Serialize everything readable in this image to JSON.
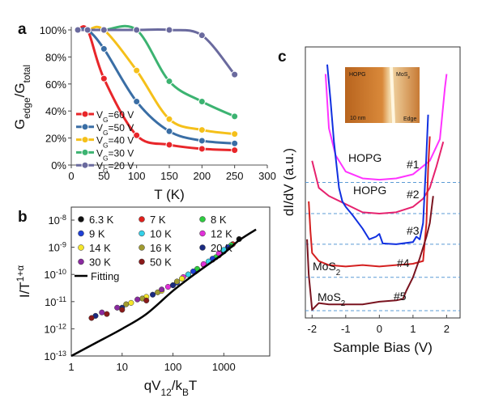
{
  "chart_data": [
    {
      "type": "line",
      "panel_label": "a",
      "x_label": "T (K)",
      "y_label": "G_{edge}/G_{total}",
      "xlim": [
        0,
        300
      ],
      "ylim": [
        0,
        100
      ],
      "xticks": [
        0,
        50,
        100,
        150,
        200,
        250,
        300
      ],
      "yticks": [
        {
          "value": 0,
          "label": "0%"
        },
        {
          "value": 20,
          "label": "20%"
        },
        {
          "value": 40,
          "label": "40%"
        },
        {
          "value": 60,
          "label": "60%"
        },
        {
          "value": 80,
          "label": "80%"
        },
        {
          "value": 100,
          "label": "100%"
        }
      ],
      "legend": "lower left",
      "x": [
        10,
        25,
        50,
        100,
        150,
        200,
        250
      ],
      "series": [
        {
          "name": "V_G=60 V",
          "color": "#e8262a",
          "values": [
            100,
            100,
            64,
            22,
            15,
            12,
            11
          ]
        },
        {
          "name": "V_G=50 V",
          "color": "#3a6ea5",
          "values": [
            100,
            100,
            86,
            47,
            25,
            18,
            16
          ]
        },
        {
          "name": "V_G=40 V",
          "color": "#f5c01a",
          "values": [
            100,
            100,
            100,
            70,
            34,
            26,
            23
          ]
        },
        {
          "name": "V_G=30 V",
          "color": "#3cb371",
          "values": [
            100,
            100,
            100,
            100,
            62,
            47,
            36
          ]
        },
        {
          "name": "V_G=20 V",
          "color": "#6a6a9e",
          "values": [
            100,
            100,
            100,
            100,
            100,
            96,
            67
          ]
        }
      ]
    },
    {
      "type": "scatter",
      "panel_label": "b",
      "x_label": "qV_{12}/k_{B}T",
      "y_label": "I/T^{1+α}",
      "xscale": "log",
      "yscale": "log",
      "box": true,
      "legend": "upper left",
      "xlim": [
        1,
        8000
      ],
      "ylim": [
        1e-13,
        3e-08
      ],
      "xticks": [
        1,
        10,
        100,
        1000
      ],
      "yticks": [
        {
          "value": 1e-13,
          "label": "10^{-13}"
        },
        {
          "value": 1e-12,
          "label": "10^{-12}"
        },
        {
          "value": 1e-11,
          "label": "10^{-11}"
        },
        {
          "value": 1e-10,
          "label": "10^{-10}"
        },
        {
          "value": 1e-09,
          "label": "10^{-9}"
        },
        {
          "value": 1e-08,
          "label": "10^{-8}"
        }
      ],
      "series": [
        {
          "name": "6.3 K",
          "color": "#111111",
          "x": [
            300,
            600,
            1000,
            2000
          ],
          "values": [
            1.5e-10,
            3.5e-10,
            7e-10,
            2e-09
          ]
        },
        {
          "name": "7 K",
          "color": "#e0201c",
          "x": [
            200,
            400,
            800,
            1500
          ],
          "values": [
            1e-10,
            2.3e-10,
            5e-10,
            1.3e-09
          ]
        },
        {
          "name": "8 K",
          "color": "#2ecc40",
          "x": [
            150,
            300,
            700,
            1400
          ],
          "values": [
            7e-11,
            1.6e-10,
            4.3e-10,
            1.2e-09
          ]
        },
        {
          "name": "9 K",
          "color": "#1f3fd6",
          "x": [
            120,
            250,
            600,
            1200
          ],
          "values": [
            5e-11,
            1.3e-10,
            3.8e-10,
            1e-09
          ]
        },
        {
          "name": "10 K",
          "color": "#35d0e8",
          "x": [
            100,
            200,
            500,
            1000
          ],
          "values": [
            4e-11,
            1e-10,
            3e-10,
            8e-10
          ]
        },
        {
          "name": "12 K",
          "color": "#e030d8",
          "x": [
            80,
            160,
            400,
            800
          ],
          "values": [
            3.5e-11,
            8e-11,
            2.4e-10,
            6e-10
          ]
        },
        {
          "name": "14 K",
          "color": "#f5e62a",
          "x": [
            15,
            30,
            60,
            150
          ],
          "values": [
            9e-12,
            1.5e-11,
            2.5e-11,
            7e-11
          ]
        },
        {
          "name": "16 K",
          "color": "#a09a30",
          "x": [
            12,
            25,
            50,
            120
          ],
          "values": [
            8e-12,
            1.3e-11,
            2.2e-11,
            5.5e-11
          ]
        },
        {
          "name": "20 K",
          "color": "#1a2a80",
          "x": [
            3,
            10,
            40,
            100
          ],
          "values": [
            3e-12,
            6e-12,
            1.8e-11,
            4e-11
          ]
        },
        {
          "name": "30 K",
          "color": "#8a2aa0",
          "x": [
            4,
            8,
            20,
            60
          ],
          "values": [
            4e-12,
            6e-12,
            1.2e-11,
            2.8e-11
          ]
        },
        {
          "name": "50 K",
          "color": "#8a1a1a",
          "x": [
            2.5,
            5,
            10,
            30
          ],
          "values": [
            2.5e-12,
            3.5e-12,
            5e-12,
            1.1e-11
          ]
        }
      ],
      "fit": {
        "name": "Fitting",
        "color": "#000000",
        "x": [
          1,
          3,
          10,
          30,
          100,
          300,
          1000,
          2000,
          4300
        ],
        "values": [
          1e-13,
          3e-13,
          1e-12,
          3.5e-12,
          2.5e-11,
          1.2e-10,
          6e-10,
          1.8e-09,
          4.5e-09
        ]
      }
    },
    {
      "type": "line",
      "panel_label": "c",
      "x_label": "Sample Bias (V)",
      "y_label": "dI/dV (a.u.)",
      "box": true,
      "xlim": [
        -2.2,
        2.4
      ],
      "ylim": [
        0,
        10
      ],
      "xticks": [
        -2,
        -1,
        0,
        1,
        2
      ],
      "reference_lines": [
        5.0,
        3.85,
        2.72,
        1.5,
        0.27
      ],
      "reference_color": "#5b9bd5",
      "annotations": [
        "HOPG",
        "#1",
        "HOPG",
        "#2",
        "#3",
        "MoS_2",
        "#4",
        "MoS_2",
        "#5"
      ],
      "inset": {
        "labels": [
          "HOPG",
          "MoS_2",
          "10 nm",
          "Edge"
        ]
      },
      "series": [
        {
          "color": "#ff33ff",
          "x": [
            -1.6,
            -1.5,
            -1.3,
            -1.0,
            -0.5,
            0,
            0.5,
            1.0,
            1.5,
            1.8,
            1.95,
            2.0
          ],
          "values": [
            9.0,
            7.0,
            6.0,
            5.4,
            5.15,
            5.1,
            5.15,
            5.3,
            5.8,
            6.6,
            8.5,
            9.0
          ]
        },
        {
          "color": "#e6226e",
          "x": [
            -2.0,
            -1.8,
            -1.5,
            -1.0,
            -0.5,
            0,
            0.5,
            1.0,
            1.3,
            1.5,
            1.7,
            1.9
          ],
          "values": [
            5.8,
            4.8,
            4.5,
            4.2,
            3.9,
            3.85,
            3.9,
            4.1,
            4.4,
            4.8,
            5.6,
            6.5
          ]
        },
        {
          "color": "#1030e0",
          "x": [
            -1.55,
            -1.45,
            -1.35,
            -1.2,
            -1.1,
            -1.0,
            -0.8,
            -0.5,
            -0.3,
            -0.1,
            0,
            0.1,
            0.5,
            1.0,
            1.1,
            1.2,
            1.3,
            1.38,
            1.45
          ],
          "values": [
            9.35,
            8.0,
            6.5,
            4.8,
            4.3,
            4.1,
            3.8,
            3.3,
            2.9,
            3.0,
            3.1,
            2.75,
            2.72,
            2.8,
            3.0,
            2.9,
            3.5,
            5.5,
            7.5
          ]
        },
        {
          "color": "#d42020",
          "x": [
            -2.1,
            -2.05,
            -2.0,
            -1.8,
            -1.5,
            -1.0,
            -0.5,
            0,
            0.5,
            1.0,
            1.3,
            1.4,
            1.45,
            1.5
          ],
          "values": [
            4.3,
            3.2,
            2.4,
            2.1,
            1.95,
            1.9,
            1.95,
            1.9,
            1.95,
            2.0,
            2.1,
            3.5,
            5.5,
            6.7
          ]
        },
        {
          "color": "#7a1420",
          "x": [
            -2.15,
            -2.1,
            -2.0,
            -1.8,
            -1.5,
            -1.0,
            -0.5,
            0,
            0.5,
            0.7,
            0.8,
            1.0,
            1.2,
            1.4,
            1.5,
            1.6
          ],
          "values": [
            2.9,
            1.6,
            0.3,
            0.55,
            0.5,
            0.5,
            0.5,
            0.6,
            0.65,
            0.7,
            1.0,
            1.5,
            2.2,
            3.0,
            3.5,
            4.5
          ]
        }
      ]
    }
  ]
}
